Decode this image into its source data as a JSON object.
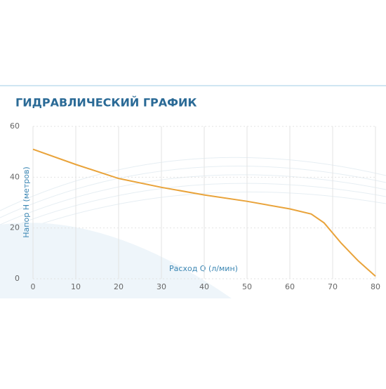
{
  "chart_data": {
    "type": "line",
    "title": "ГИДРАВЛИЧЕСКИЙ ГРАФИК",
    "x_label": "Расход Q (л/мин)",
    "y_label": "Напор Н (метров)",
    "x": [
      0,
      10,
      20,
      30,
      40,
      50,
      60,
      65,
      68,
      72,
      76,
      80
    ],
    "series": [
      {
        "color": "#e9a33a",
        "values": [
          51,
          45,
          39.5,
          36,
          33,
          30.5,
          27.5,
          25.5,
          22,
          14,
          7,
          1
        ]
      }
    ],
    "xlim": [
      0,
      80
    ],
    "xticks": [
      0,
      10,
      20,
      30,
      40,
      50,
      60,
      70,
      80
    ],
    "ylim": [
      0,
      60
    ],
    "yticks": [
      0,
      20,
      40,
      60
    ],
    "grid": true
  }
}
